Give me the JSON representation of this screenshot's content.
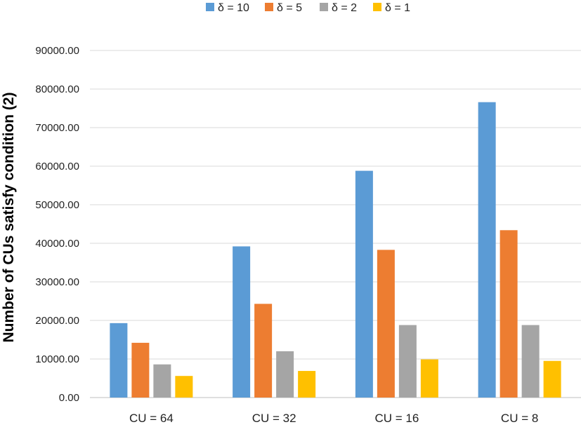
{
  "chart_data": {
    "type": "bar",
    "categories": [
      "CU = 64",
      "CU = 32",
      "CU = 16",
      "CU = 8"
    ],
    "series": [
      {
        "name": "δ = 10",
        "color": "#5b9bd5",
        "values": [
          19300,
          39200,
          58800,
          76600
        ]
      },
      {
        "name": "δ = 5",
        "color": "#ed7d31",
        "values": [
          14200,
          24300,
          38300,
          43400
        ]
      },
      {
        "name": "δ = 2",
        "color": "#a5a5a5",
        "values": [
          8600,
          12000,
          18800,
          18800
        ]
      },
      {
        "name": "δ = 1",
        "color": "#ffc000",
        "values": [
          5600,
          6900,
          9900,
          9500
        ]
      }
    ],
    "ylabel": "Number of CUs satisfy condition (2)",
    "xlabel": "",
    "ylim": [
      0,
      90000
    ],
    "yticks": [
      "0.00",
      "10000.00",
      "20000.00",
      "30000.00",
      "40000.00",
      "50000.00",
      "60000.00",
      "70000.00",
      "80000.00",
      "90000.00"
    ],
    "grid": true,
    "legend_position": "top"
  }
}
